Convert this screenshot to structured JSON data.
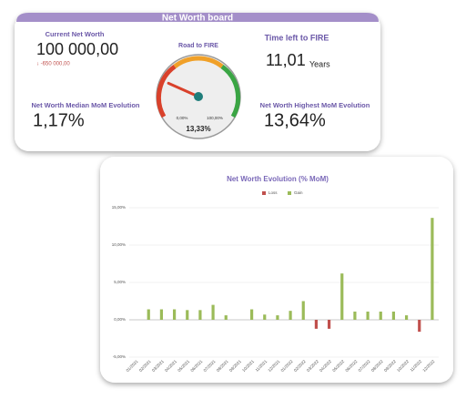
{
  "board": {
    "title": "Net Worth board",
    "current_label": "Current Net Worth",
    "current_value": "100 000,00",
    "current_change": "↓ -650 000,00",
    "gauge_title": "Road to FIRE",
    "gauge": {
      "min": {
        "value": 0,
        "label": "0,00%"
      },
      "max": {
        "value": 100,
        "label": "100,00%"
      },
      "value": {
        "value": 13.33,
        "label": "13,33%"
      }
    },
    "time_label": "Time left to FIRE",
    "time_value": "11,01",
    "time_unit": "Years",
    "median_label": "Net Worth Median MoM Evolution",
    "median_value": "1,17%",
    "highest_label": "Net Worth Highest MoM Evolution",
    "highest_value": "13,64%"
  },
  "chart_data": {
    "type": "bar",
    "title": "Net Worth Evolution (% MoM)",
    "categories": [
      "01/2021",
      "02/2021",
      "03/2021",
      "04/2021",
      "05/2021",
      "06/2021",
      "07/2021",
      "08/2021",
      "09/2021",
      "10/2021",
      "11/2021",
      "12/2021",
      "01/2022",
      "02/2022",
      "03/2022",
      "04/2022",
      "05/2022",
      "06/2022",
      "07/2022",
      "08/2022",
      "09/2022",
      "10/2022",
      "11/2022",
      "12/2022"
    ],
    "series": [
      {
        "name": "Loss",
        "color": "#c0504d",
        "values": [
          null,
          null,
          null,
          null,
          null,
          null,
          null,
          null,
          null,
          null,
          null,
          null,
          null,
          null,
          -1.2,
          -1.2,
          null,
          null,
          null,
          null,
          null,
          null,
          -1.6,
          null
        ]
      },
      {
        "name": "Gain",
        "color": "#9bbb59",
        "values": [
          null,
          1.4,
          1.4,
          1.4,
          1.3,
          1.3,
          2.0,
          0.6,
          null,
          1.4,
          0.7,
          0.6,
          1.2,
          2.5,
          null,
          null,
          6.2,
          1.1,
          1.1,
          1.1,
          1.1,
          0.6,
          null,
          13.64
        ]
      }
    ],
    "ylim": [
      -5,
      15
    ],
    "yticks": [
      {
        "value": -5,
        "label": "-5,00%"
      },
      {
        "value": 0,
        "label": "0,00%"
      },
      {
        "value": 5,
        "label": "5,00%"
      },
      {
        "value": 10,
        "label": "10,00%"
      },
      {
        "value": 15,
        "label": "15,00%"
      }
    ],
    "grid": true,
    "legend": "top"
  }
}
